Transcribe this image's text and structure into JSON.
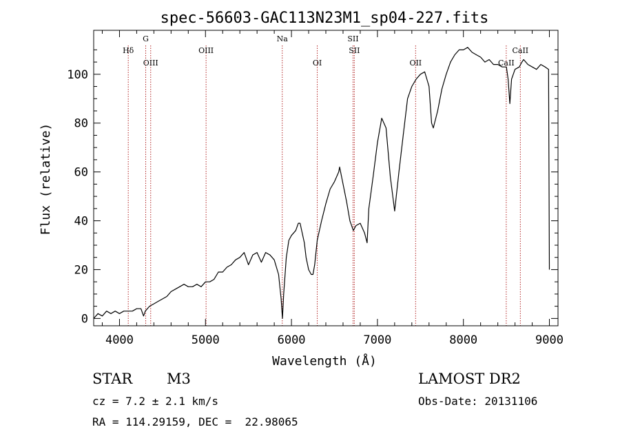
{
  "chart_data": {
    "type": "line",
    "title": "spec-56603-GAC113N23M1_sp04-227.fits",
    "xlabel": "Wavelength (Å)",
    "ylabel": "Flux (relative)",
    "xlim": [
      3700,
      9100
    ],
    "ylim": [
      -3,
      118
    ],
    "x_ticks": [
      4000,
      5000,
      6000,
      7000,
      8000,
      9000
    ],
    "y_ticks": [
      0,
      20,
      40,
      60,
      80,
      100
    ],
    "grid": false,
    "line_color": "#000000",
    "marker_color": "#b22222",
    "series": [
      {
        "x": [
          3700,
          3750,
          3800,
          3850,
          3900,
          3950,
          4000,
          4050,
          4100,
          4150,
          4200,
          4250,
          4280,
          4300,
          4350,
          4400,
          4450,
          4500,
          4550,
          4600,
          4650,
          4700,
          4750,
          4800,
          4850,
          4900,
          4950,
          5000,
          5050,
          5100,
          5150,
          5200,
          5250,
          5300,
          5350,
          5400,
          5450,
          5500,
          5550,
          5600,
          5650,
          5700,
          5750,
          5800,
          5850,
          5880,
          5895,
          5910,
          5940,
          5970,
          6000,
          6050,
          6080,
          6100,
          6150,
          6170,
          6200,
          6230,
          6250,
          6270,
          6300,
          6350,
          6400,
          6450,
          6500,
          6550,
          6560,
          6600,
          6640,
          6680,
          6700,
          6720,
          6750,
          6800,
          6850,
          6880,
          6900,
          6950,
          7000,
          7050,
          7100,
          7150,
          7200,
          7250,
          7300,
          7350,
          7400,
          7450,
          7500,
          7550,
          7600,
          7630,
          7650,
          7700,
          7750,
          7800,
          7850,
          7900,
          7950,
          8000,
          8050,
          8100,
          8150,
          8200,
          8250,
          8300,
          8350,
          8400,
          8450,
          8500,
          8520,
          8540,
          8560,
          8600,
          8650,
          8680,
          8700,
          8750,
          8800,
          8850,
          8900,
          8950,
          8990,
          9000
        ],
        "values": [
          0,
          2,
          1,
          3,
          2,
          3,
          2,
          3,
          3,
          3,
          4,
          4,
          1,
          3,
          5,
          6,
          7,
          8,
          9,
          11,
          12,
          13,
          14,
          13,
          13,
          14,
          13,
          15,
          15,
          16,
          19,
          19,
          21,
          22,
          24,
          25,
          27,
          22,
          26,
          27,
          23,
          27,
          26,
          24,
          18,
          8,
          0,
          10,
          25,
          32,
          34,
          36,
          39,
          39,
          31,
          25,
          20,
          18,
          18,
          22,
          32,
          40,
          47,
          53,
          56,
          60,
          62,
          55,
          48,
          40,
          38,
          36,
          38,
          39,
          35,
          31,
          45,
          58,
          72,
          82,
          78,
          58,
          44,
          60,
          75,
          90,
          95,
          98,
          100,
          101,
          95,
          80,
          78,
          85,
          94,
          100,
          105,
          108,
          110,
          110,
          111,
          109,
          108,
          107,
          105,
          106,
          104,
          104,
          103,
          103,
          98,
          88,
          98,
          102,
          103,
          105,
          106,
          104,
          103,
          102,
          104,
          103,
          102,
          20
        ]
      }
    ],
    "lines": [
      {
        "x": 4102,
        "label": "Hδ",
        "row": 1
      },
      {
        "x": 4305,
        "label": "G",
        "row": 0
      },
      {
        "x": 4363,
        "label": "OIII",
        "row": 2
      },
      {
        "x": 5007,
        "label": "OIII",
        "row": 1
      },
      {
        "x": 5893,
        "label": "Na",
        "row": 0
      },
      {
        "x": 6300,
        "label": "OI",
        "row": 2
      },
      {
        "x": 6716,
        "label": "SII",
        "row": 0
      },
      {
        "x": 6731,
        "label": "SII",
        "row": 1
      },
      {
        "x": 7444,
        "label": "OII",
        "row": 2
      },
      {
        "x": 8498,
        "label": "CaII",
        "row": 2
      },
      {
        "x": 8662,
        "label": "CaII",
        "row": 1
      }
    ]
  },
  "footer": {
    "object_class": "STAR",
    "subclass": "M3",
    "survey": "LAMOST DR2",
    "redshift": "cz = 7.2 ± 2.1 km/s",
    "obs_date": "Obs-Date: 20131106",
    "coords": "RA = 114.29159, DEC =  22.98065"
  }
}
